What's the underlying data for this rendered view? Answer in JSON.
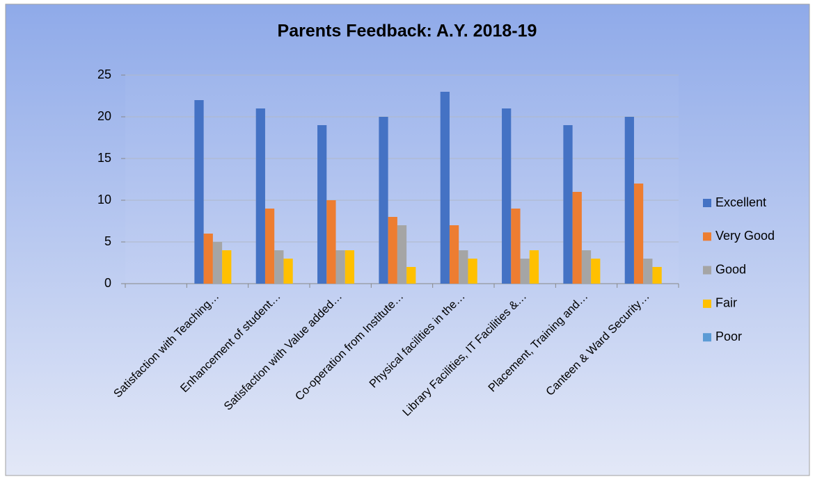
{
  "chart_data": {
    "type": "bar",
    "title": "Parents Feedback: A.Y. 2018-19",
    "categories": [
      null,
      "Satisfaction with Teaching…",
      "Enhancement of student…",
      "Satisfaction with Value added…",
      "Co-operation from Institute…",
      "Physical facilities in the…",
      "Library Facilities, IT Facilities &…",
      "Placement, Training and…",
      "Canteen & Ward Security…"
    ],
    "series": [
      {
        "name": "Excellent",
        "color": "#4472c4",
        "values": [
          null,
          22,
          21,
          19,
          20,
          23,
          21,
          19,
          20
        ]
      },
      {
        "name": "Very Good",
        "color": "#ed7d31",
        "values": [
          null,
          6,
          9,
          10,
          8,
          7,
          9,
          11,
          12
        ]
      },
      {
        "name": "Good",
        "color": "#a5a5a5",
        "values": [
          null,
          5,
          4,
          4,
          7,
          4,
          3,
          4,
          3
        ]
      },
      {
        "name": "Fair",
        "color": "#ffc000",
        "values": [
          null,
          4,
          3,
          4,
          2,
          3,
          4,
          3,
          2
        ]
      },
      {
        "name": "Poor",
        "color": "#5b9bd5",
        "values": [
          null,
          0,
          0,
          0,
          0,
          0,
          0,
          0,
          0
        ]
      }
    ],
    "ylim": [
      0,
      25
    ],
    "yticks": [
      0,
      5,
      10,
      15,
      20,
      25
    ],
    "grid": true,
    "legend": "right"
  }
}
